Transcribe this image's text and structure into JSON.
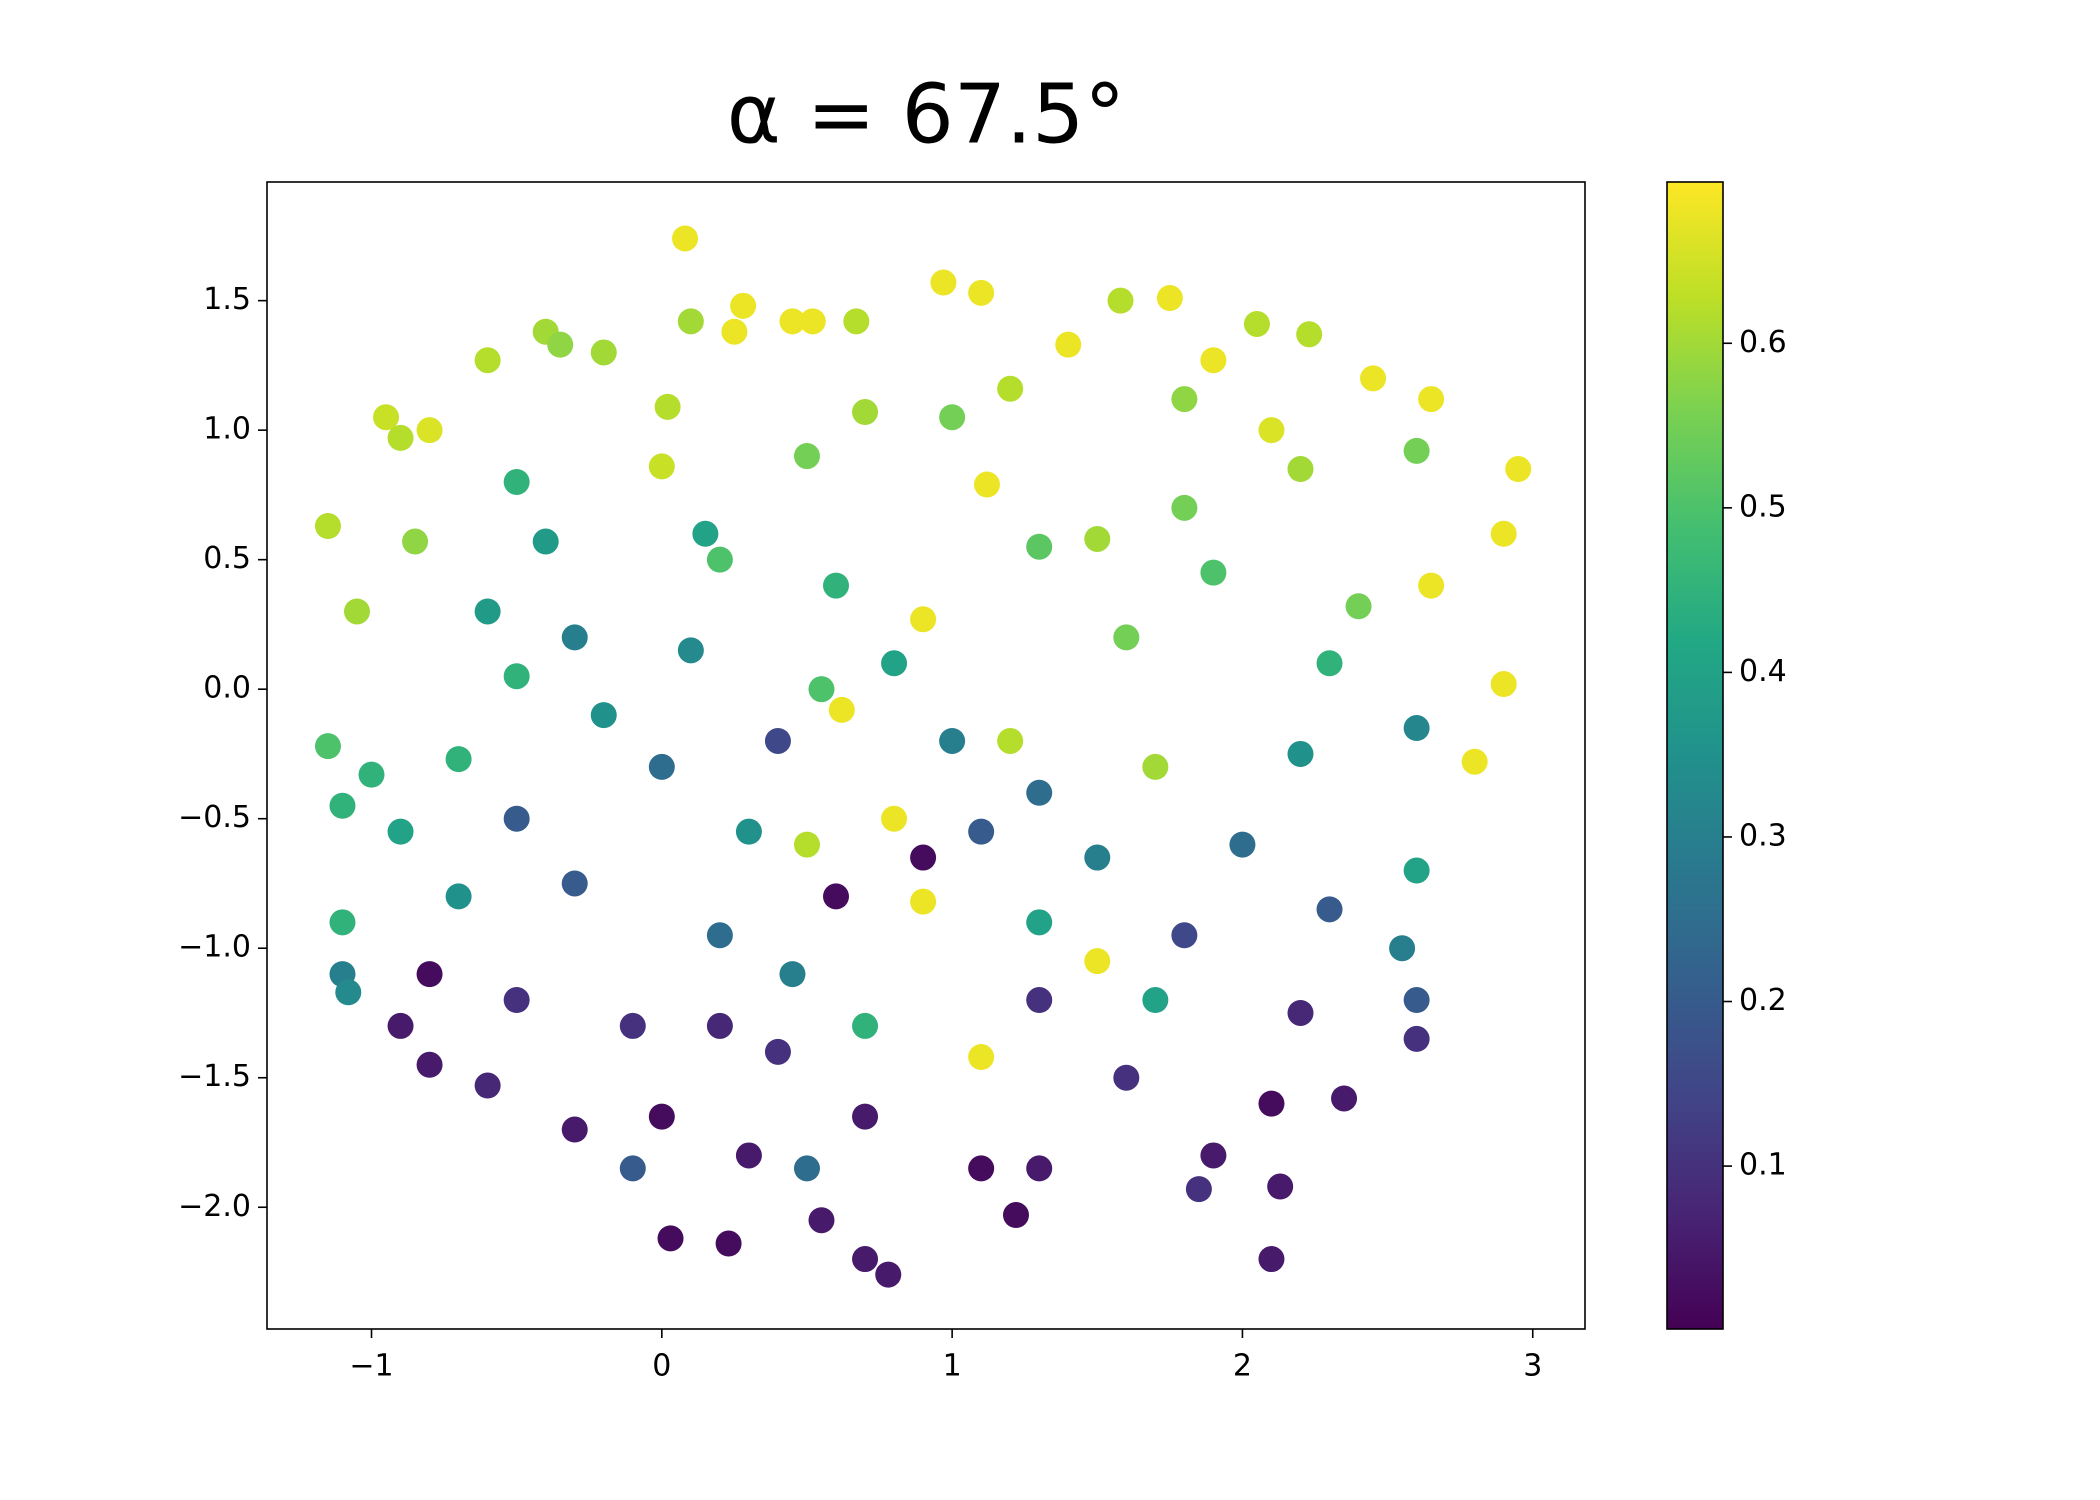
{
  "chart_data": {
    "type": "scatter",
    "title": "α = 67.5°",
    "colormap": "viridis",
    "xlim": [
      -1.36,
      3.18
    ],
    "ylim": [
      -2.47,
      1.958
    ],
    "xticks": [
      {
        "value": -1,
        "label": "−1"
      },
      0,
      1,
      2,
      3
    ],
    "yticks": [
      1.5,
      {
        "value": 1,
        "label": "1.0"
      },
      0.5,
      {
        "value": 0,
        "label": "0.0"
      },
      {
        "value": -0.5,
        "label": "−0.5"
      },
      {
        "value": -1,
        "label": "−1.0"
      },
      {
        "value": -1.5,
        "label": "−1.5"
      },
      {
        "value": -2,
        "label": "−2.0"
      }
    ],
    "colorbar": {
      "clim": [
        0.001,
        0.698
      ],
      "ticks": [
        0.1,
        0.2,
        0.3,
        0.4,
        0.5,
        0.6
      ]
    },
    "x": [
      0.08,
      0.97,
      1.1,
      1.58,
      1.75,
      0.28,
      0.67,
      -0.4,
      -0.35,
      0.1,
      0.52,
      0.45,
      2.05,
      2.23,
      1.4,
      0.25,
      -0.2,
      -0.6,
      2.45,
      2.65,
      1.9,
      1.2,
      -0.95,
      -0.9,
      -0.8,
      0.02,
      0.7,
      1.0,
      1.8,
      2.1,
      2.6,
      2.95,
      -1.15,
      -0.85,
      -0.5,
      0.0,
      0.5,
      1.12,
      1.5,
      2.2,
      2.9,
      -1.05,
      -0.6,
      -0.4,
      0.2,
      0.6,
      0.9,
      1.3,
      1.9,
      2.4,
      2.65,
      2.9,
      2.8,
      -1.15,
      -1.0,
      -0.7,
      -0.3,
      0.1,
      0.55,
      0.62,
      1.2,
      1.7,
      2.2,
      2.6,
      -1.1,
      -0.9,
      -0.5,
      0.0,
      0.3,
      0.5,
      0.8,
      1.1,
      1.5,
      2.0,
      2.6,
      -1.1,
      -0.7,
      -0.3,
      0.2,
      0.6,
      0.9,
      0.9,
      1.3,
      1.5,
      1.8,
      2.3,
      2.55,
      -1.1,
      -1.08,
      -0.8,
      -0.5,
      -0.1,
      0.2,
      0.45,
      0.7,
      1.1,
      1.3,
      1.7,
      2.2,
      2.6,
      -0.9,
      -0.8,
      -0.6,
      -0.3,
      0.0,
      -0.1,
      0.3,
      0.5,
      0.7,
      1.1,
      1.3,
      1.9,
      1.85,
      2.1,
      2.35,
      2.6,
      0.03,
      0.23,
      0.55,
      0.7,
      0.78,
      1.22,
      2.1,
      2.13,
      0.4,
      0.8,
      1.6,
      1.0,
      -0.2,
      2.3,
      0.15,
      1.8,
      -0.5,
      1.3,
      0.4,
      1.6
    ],
    "values": [
      1.74,
      1.57,
      1.53,
      1.5,
      1.51,
      1.48,
      1.42,
      1.38,
      1.33,
      1.42,
      1.42,
      1.42,
      1.41,
      1.37,
      1.33,
      1.38,
      1.3,
      1.27,
      1.2,
      1.12,
      1.27,
      1.16,
      1.05,
      0.97,
      1.0,
      1.09,
      1.07,
      1.05,
      1.12,
      1.0,
      0.92,
      0.85,
      0.63,
      0.57,
      0.8,
      0.86,
      0.9,
      0.79,
      0.58,
      0.85,
      0.6,
      0.3,
      0.3,
      0.57,
      0.5,
      0.4,
      0.27,
      0.55,
      0.45,
      0.32,
      0.4,
      0.02,
      -0.28,
      -0.22,
      -0.33,
      -0.27,
      0.2,
      0.15,
      0.0,
      -0.08,
      -0.2,
      -0.3,
      -0.25,
      -0.15,
      -0.45,
      -0.55,
      -0.5,
      -0.3,
      -0.55,
      -0.6,
      -0.5,
      -0.55,
      -0.65,
      -0.6,
      -0.7,
      -0.9,
      -0.8,
      -0.75,
      -0.95,
      -0.8,
      -0.65,
      -0.82,
      -0.9,
      -1.05,
      -0.95,
      -0.85,
      -1.0,
      -1.1,
      -1.17,
      -1.1,
      -1.2,
      -1.3,
      -1.3,
      -1.1,
      -1.3,
      -1.42,
      -1.2,
      -1.2,
      -1.25,
      -1.2,
      -1.3,
      -1.45,
      -1.53,
      -1.7,
      -1.65,
      -1.85,
      -1.8,
      -1.85,
      -1.65,
      -1.85,
      -1.85,
      -1.8,
      -1.93,
      -1.6,
      -1.58,
      -1.35,
      -2.12,
      -2.14,
      -2.05,
      -2.2,
      -2.26,
      -2.03,
      -2.2,
      -1.92,
      -0.2,
      0.1,
      0.2,
      -0.2,
      -0.1,
      0.1,
      0.6,
      0.7,
      0.05,
      -0.4,
      -1.4,
      -1.5
    ],
    "color_values": [
      0.68,
      0.68,
      0.68,
      0.62,
      0.68,
      0.68,
      0.62,
      0.6,
      0.58,
      0.6,
      0.68,
      0.68,
      0.62,
      0.62,
      0.68,
      0.68,
      0.6,
      0.62,
      0.68,
      0.68,
      0.68,
      0.62,
      0.64,
      0.62,
      0.66,
      0.62,
      0.6,
      0.55,
      0.58,
      0.66,
      0.55,
      0.68,
      0.62,
      0.58,
      0.45,
      0.64,
      0.55,
      0.68,
      0.6,
      0.6,
      0.68,
      0.6,
      0.38,
      0.38,
      0.5,
      0.45,
      0.68,
      0.52,
      0.5,
      0.55,
      0.68,
      0.68,
      0.68,
      0.5,
      0.45,
      0.45,
      0.3,
      0.33,
      0.5,
      0.68,
      0.62,
      0.6,
      0.35,
      0.32,
      0.45,
      0.4,
      0.2,
      0.25,
      0.35,
      0.62,
      0.68,
      0.2,
      0.3,
      0.25,
      0.4,
      0.45,
      0.35,
      0.2,
      0.25,
      0.02,
      0.02,
      0.68,
      0.4,
      0.68,
      0.15,
      0.2,
      0.3,
      0.3,
      0.33,
      0.02,
      0.1,
      0.1,
      0.08,
      0.3,
      0.45,
      0.68,
      0.1,
      0.4,
      0.08,
      0.2,
      0.05,
      0.05,
      0.08,
      0.05,
      0.02,
      0.2,
      0.05,
      0.25,
      0.05,
      0.02,
      0.05,
      0.05,
      0.1,
      0.02,
      0.05,
      0.1,
      0.02,
      0.02,
      0.05,
      0.05,
      0.05,
      0.02,
      0.05,
      0.05,
      0.15,
      0.4,
      0.55,
      0.3,
      0.35,
      0.45,
      0.4,
      0.55,
      0.45,
      0.25,
      0.1,
      0.1
    ]
  }
}
